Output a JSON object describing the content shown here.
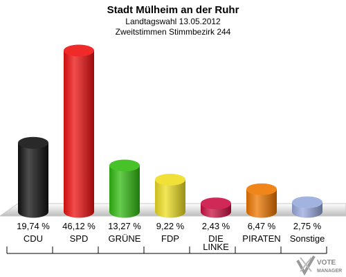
{
  "header": {
    "title": "Stadt Mülheim an der Ruhr",
    "subtitle1": "Landtagswahl 13.05.2012",
    "subtitle2": "Zweitstimmen Stimmbezirk 244"
  },
  "logo": {
    "line1": "VOTE",
    "line2": "MANAGER",
    "icon": "checkmark-x-icon"
  },
  "chart_data": {
    "type": "bar",
    "title": "Stadt Mülheim an der Ruhr",
    "subtitle": "Landtagswahl 13.05.2012 · Zweitstimmen Stimmbezirk 244",
    "categories": [
      "CDU",
      "SPD",
      "GRÜNE",
      "FDP",
      "DIE LINKE",
      "PIRATEN",
      "Sonstige"
    ],
    "category_lines": [
      [
        "CDU"
      ],
      [
        "SPD"
      ],
      [
        "GRÜNE"
      ],
      [
        "FDP"
      ],
      [
        "DIE",
        "LINKE"
      ],
      [
        "PIRATEN"
      ],
      [
        "Sonstige"
      ]
    ],
    "values": [
      19.74,
      46.12,
      13.27,
      9.22,
      2.43,
      6.47,
      2.75
    ],
    "value_labels": [
      "19,74 %",
      "46,12 %",
      "13,27 %",
      "9,22 %",
      "2,43 %",
      "6,47 %",
      "2,75 %"
    ],
    "colors": [
      "#111111",
      "#ee1111",
      "#33bb11",
      "#eedd22",
      "#cc1144",
      "#ee7700",
      "#99aadd"
    ],
    "ylim": [
      0,
      46.12
    ],
    "grid": false,
    "legend": "none",
    "xlabel": "",
    "ylabel": ""
  }
}
